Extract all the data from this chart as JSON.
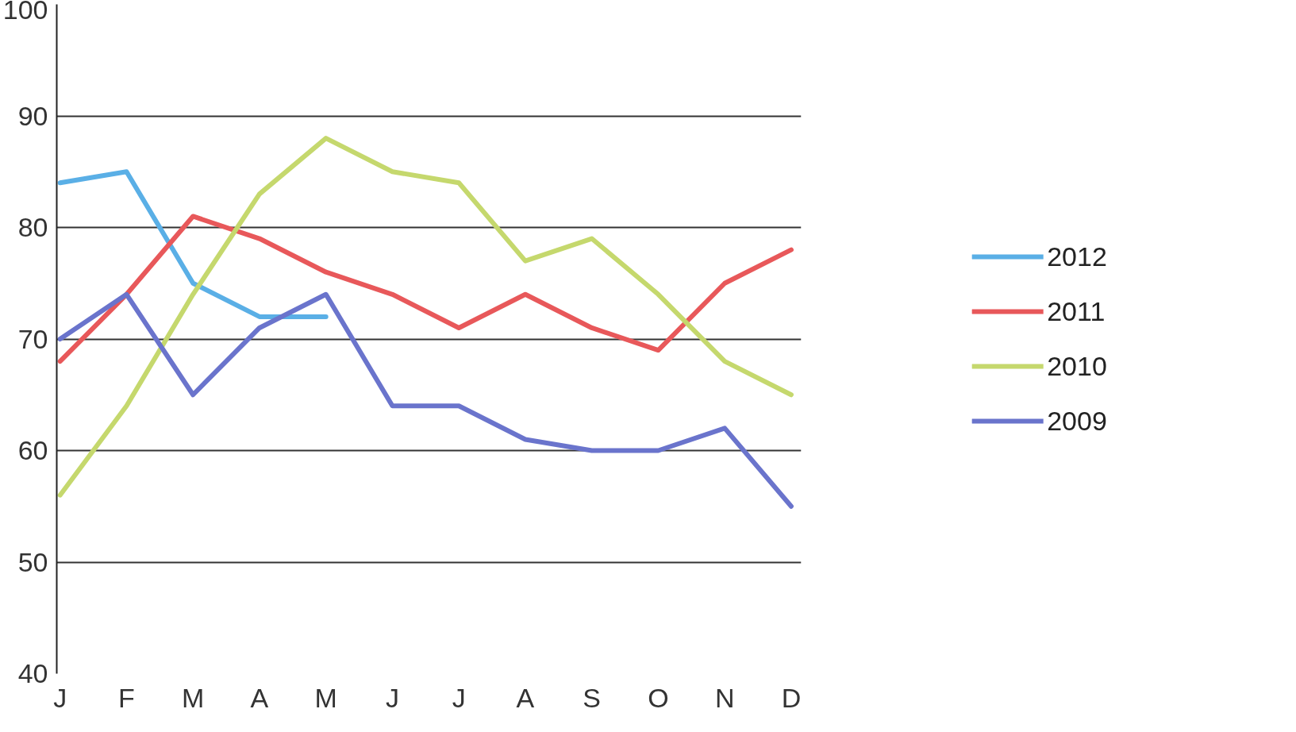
{
  "chart_data": {
    "type": "line",
    "categories": [
      "J",
      "F",
      "M",
      "A",
      "M",
      "J",
      "J",
      "A",
      "S",
      "O",
      "N",
      "D"
    ],
    "series": [
      {
        "name": "2012",
        "color": "#5aafe6",
        "values": [
          84,
          85,
          75,
          72,
          72,
          null,
          null,
          null,
          null,
          null,
          null,
          null
        ]
      },
      {
        "name": "2011",
        "color": "#e8585a",
        "values": [
          68,
          74,
          81,
          79,
          76,
          74,
          71,
          74,
          71,
          69,
          75,
          78
        ]
      },
      {
        "name": "2010",
        "color": "#c5d86d",
        "values": [
          56,
          64,
          74,
          83,
          88,
          85,
          84,
          77,
          79,
          74,
          68,
          65
        ]
      },
      {
        "name": "2009",
        "color": "#6a74cc",
        "values": [
          70,
          74,
          65,
          71,
          74,
          64,
          64,
          61,
          60,
          60,
          62,
          55
        ]
      }
    ],
    "ylim": [
      40,
      100
    ],
    "yticks": [
      40,
      50,
      60,
      70,
      80,
      90,
      100
    ],
    "grid": "y",
    "legend": "right",
    "marker": "none",
    "line_style": "solid"
  }
}
